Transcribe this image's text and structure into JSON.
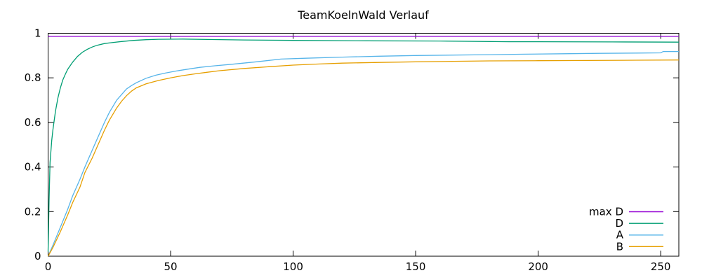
{
  "title": "TeamKoelnWald Verlauf",
  "chart_data": {
    "type": "line",
    "title": "TeamKoelnWald Verlauf",
    "xlabel": "",
    "ylabel": "",
    "xlim": [
      0,
      257.4
    ],
    "ylim": [
      0,
      1
    ],
    "x_ticks": [
      0,
      50,
      100,
      150,
      200,
      250
    ],
    "x_tick_labels": [
      "0",
      "50",
      "100",
      "150",
      "200",
      "250"
    ],
    "y_ticks": [
      0,
      0.2,
      0.4,
      0.6,
      0.8,
      1
    ],
    "y_tick_labels": [
      "0",
      "0.2",
      "0.4",
      "0.6",
      "0.8",
      "1"
    ],
    "grid": false,
    "legend_position": "inside-bottom-right",
    "background_color": "#ffffff",
    "axis_color": "#000000",
    "series": [
      {
        "name": "max D",
        "color": "#9400d3",
        "x": [
          0,
          257.4
        ],
        "y": [
          0.986,
          0.986
        ]
      },
      {
        "name": "D",
        "color": "#009e73",
        "x": [
          0,
          0.4,
          0.8,
          1.5,
          2,
          3,
          4,
          5,
          6,
          7,
          8,
          10,
          12,
          14,
          16,
          18,
          20,
          23,
          26,
          30,
          35,
          40,
          45,
          55,
          65,
          80,
          100,
          130,
          160,
          188,
          200,
          230,
          257.4
        ],
        "y": [
          0.02,
          0.25,
          0.42,
          0.52,
          0.57,
          0.65,
          0.71,
          0.755,
          0.79,
          0.815,
          0.838,
          0.87,
          0.896,
          0.915,
          0.928,
          0.938,
          0.946,
          0.954,
          0.958,
          0.963,
          0.968,
          0.971,
          0.973,
          0.974,
          0.972,
          0.97,
          0.968,
          0.966,
          0.965,
          0.962,
          0.962,
          0.961,
          0.96
        ]
      },
      {
        "name": "A",
        "color": "#56b4e9",
        "x": [
          0,
          2,
          5,
          8,
          10,
          13,
          15,
          18,
          20,
          23,
          25,
          28,
          30,
          32,
          34,
          36,
          40,
          44,
          48,
          52,
          57,
          62,
          68,
          75,
          85,
          95,
          105,
          120,
          135,
          150,
          165,
          180,
          195,
          210,
          225,
          240,
          250,
          251,
          257.4
        ],
        "y": [
          0,
          0.05,
          0.13,
          0.21,
          0.27,
          0.345,
          0.4,
          0.475,
          0.525,
          0.6,
          0.645,
          0.7,
          0.725,
          0.75,
          0.765,
          0.778,
          0.798,
          0.812,
          0.822,
          0.83,
          0.839,
          0.847,
          0.854,
          0.861,
          0.872,
          0.884,
          0.888,
          0.893,
          0.897,
          0.9,
          0.902,
          0.904,
          0.906,
          0.908,
          0.91,
          0.911,
          0.912,
          0.918,
          0.918
        ]
      },
      {
        "name": "B",
        "color": "#e69f00",
        "x": [
          0,
          2,
          5,
          8,
          10,
          13,
          15,
          18,
          20,
          23,
          25,
          28,
          30,
          32,
          34,
          36,
          40,
          45,
          50,
          55,
          60,
          65,
          70,
          80,
          90,
          100,
          110,
          120,
          135,
          150,
          165,
          180,
          200,
          220,
          240,
          257.4
        ],
        "y": [
          0,
          0.04,
          0.11,
          0.185,
          0.24,
          0.31,
          0.375,
          0.44,
          0.49,
          0.565,
          0.61,
          0.665,
          0.695,
          0.72,
          0.74,
          0.755,
          0.773,
          0.788,
          0.8,
          0.81,
          0.818,
          0.825,
          0.832,
          0.842,
          0.85,
          0.857,
          0.862,
          0.866,
          0.869,
          0.872,
          0.874,
          0.876,
          0.877,
          0.878,
          0.879,
          0.88
        ]
      }
    ]
  }
}
